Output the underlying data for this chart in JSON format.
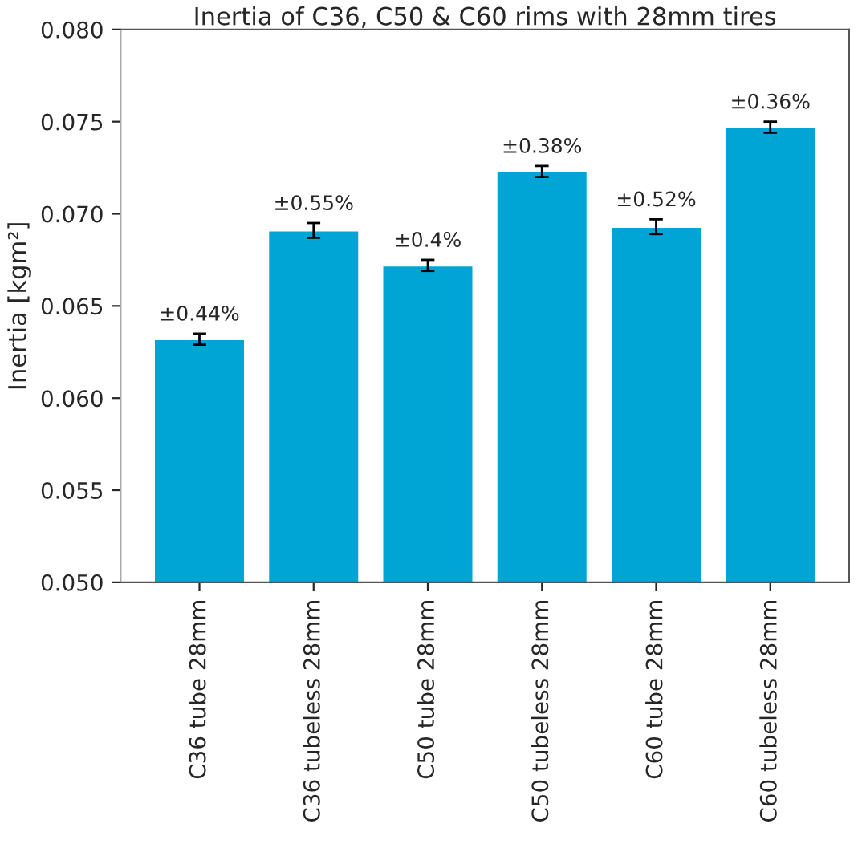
{
  "chart_data": {
    "type": "bar",
    "title": "Inertia of C36, C50 & C60 rims with 28mm tires",
    "ylabel": "Inertia [kgm²]",
    "categories": [
      "C36 tube 28mm",
      "C36 tubeless 28mm",
      "C50 tube 28mm",
      "C50 tubeless 28mm",
      "C60 tube 28mm",
      "C60 tubeless 28mm"
    ],
    "values": [
      0.0632,
      0.0691,
      0.0672,
      0.0723,
      0.0693,
      0.0747
    ],
    "errors": [
      0.0003,
      0.0004,
      0.0003,
      0.0003,
      0.0004,
      0.0003
    ],
    "annotations": [
      {
        "text": "±0.44%",
        "x": "C36 tube 28mm",
        "y": 0.0635
      },
      {
        "text": "±0.55%",
        "x": "C36 tubeless 28mm",
        "y": 0.0695
      },
      {
        "text": "±0.4%",
        "x": "C50 tube 28mm",
        "y": 0.0675
      },
      {
        "text": "±0.38%",
        "x": "C50 tubeless 28mm",
        "y": 0.0726
      },
      {
        "text": "±0.52%",
        "x": "C60 tube 28mm",
        "y": 0.0697
      },
      {
        "text": "±0.36%",
        "x": "C60 tubeless 28mm",
        "y": 0.075
      }
    ],
    "color": "#00a5d6",
    "ylim": [
      0.05,
      0.08
    ],
    "yticks": [
      {
        "value": 0.05,
        "label": "0.050"
      },
      {
        "value": 0.055,
        "label": "0.055"
      },
      {
        "value": 0.06,
        "label": "0.060"
      },
      {
        "value": 0.065,
        "label": "0.065"
      },
      {
        "value": 0.07,
        "label": "0.070"
      },
      {
        "value": 0.075,
        "label": "0.075"
      },
      {
        "value": 0.08,
        "label": "0.080"
      }
    ],
    "grid": false,
    "legend": false
  }
}
